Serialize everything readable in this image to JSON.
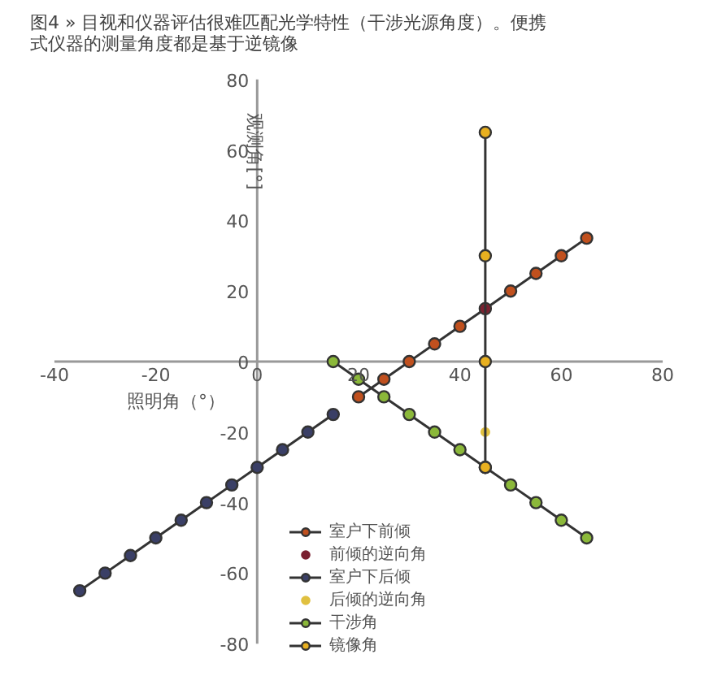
{
  "chart_data": {
    "type": "line",
    "title": "图4 » 目视和仪器评估很难匹配光学特性（干涉光源角度）。便携式仪器的测量角度都是基于逆镜像",
    "xlabel": "照明角（°）",
    "ylabel": "观测角[°]",
    "xlim": [
      -40,
      80
    ],
    "ylim": [
      -80,
      80
    ],
    "xticks": [
      -40,
      -20,
      0,
      20,
      40,
      60,
      80
    ],
    "yticks": [
      -80,
      -60,
      -40,
      -20,
      0,
      20,
      40,
      60,
      80
    ],
    "grid": false,
    "legend": "bottom",
    "marker": "circle",
    "line_style": "solid",
    "series": [
      {
        "name": "室户下前倾",
        "color": "#c0501e",
        "x": [
          20,
          25,
          30,
          35,
          40,
          45,
          50,
          55,
          60,
          65
        ],
        "values": [
          -10,
          -5,
          0,
          5,
          10,
          15,
          20,
          25,
          30,
          35
        ]
      },
      {
        "name": "前倾的逆向角",
        "type": "scatter",
        "color": "#7a2030",
        "x": [
          45
        ],
        "values": [
          15
        ]
      },
      {
        "name": "室户下后倾",
        "color": "#3a3f66",
        "x": [
          -35,
          -30,
          -25,
          -20,
          -15,
          -10,
          -5,
          0,
          5,
          10,
          15
        ],
        "values": [
          -65,
          -60,
          -55,
          -50,
          -45,
          -40,
          -35,
          -30,
          -25,
          -20,
          -15
        ]
      },
      {
        "name": "后倾的逆向角",
        "type": "scatter",
        "color": "#e0c040",
        "x": [
          45
        ],
        "values": [
          -20
        ]
      },
      {
        "name": "干涉角",
        "color": "#8bb83a",
        "x": [
          15,
          20,
          25,
          30,
          35,
          40,
          45,
          50,
          55,
          60,
          65
        ],
        "values": [
          0,
          -5,
          -10,
          -15,
          -20,
          -25,
          -30,
          -35,
          -40,
          -45,
          -50
        ]
      },
      {
        "name": "镜像角",
        "color": "#e8b020",
        "x": [
          45,
          45,
          45,
          45
        ],
        "values": [
          -30,
          0,
          30,
          65
        ]
      }
    ]
  }
}
